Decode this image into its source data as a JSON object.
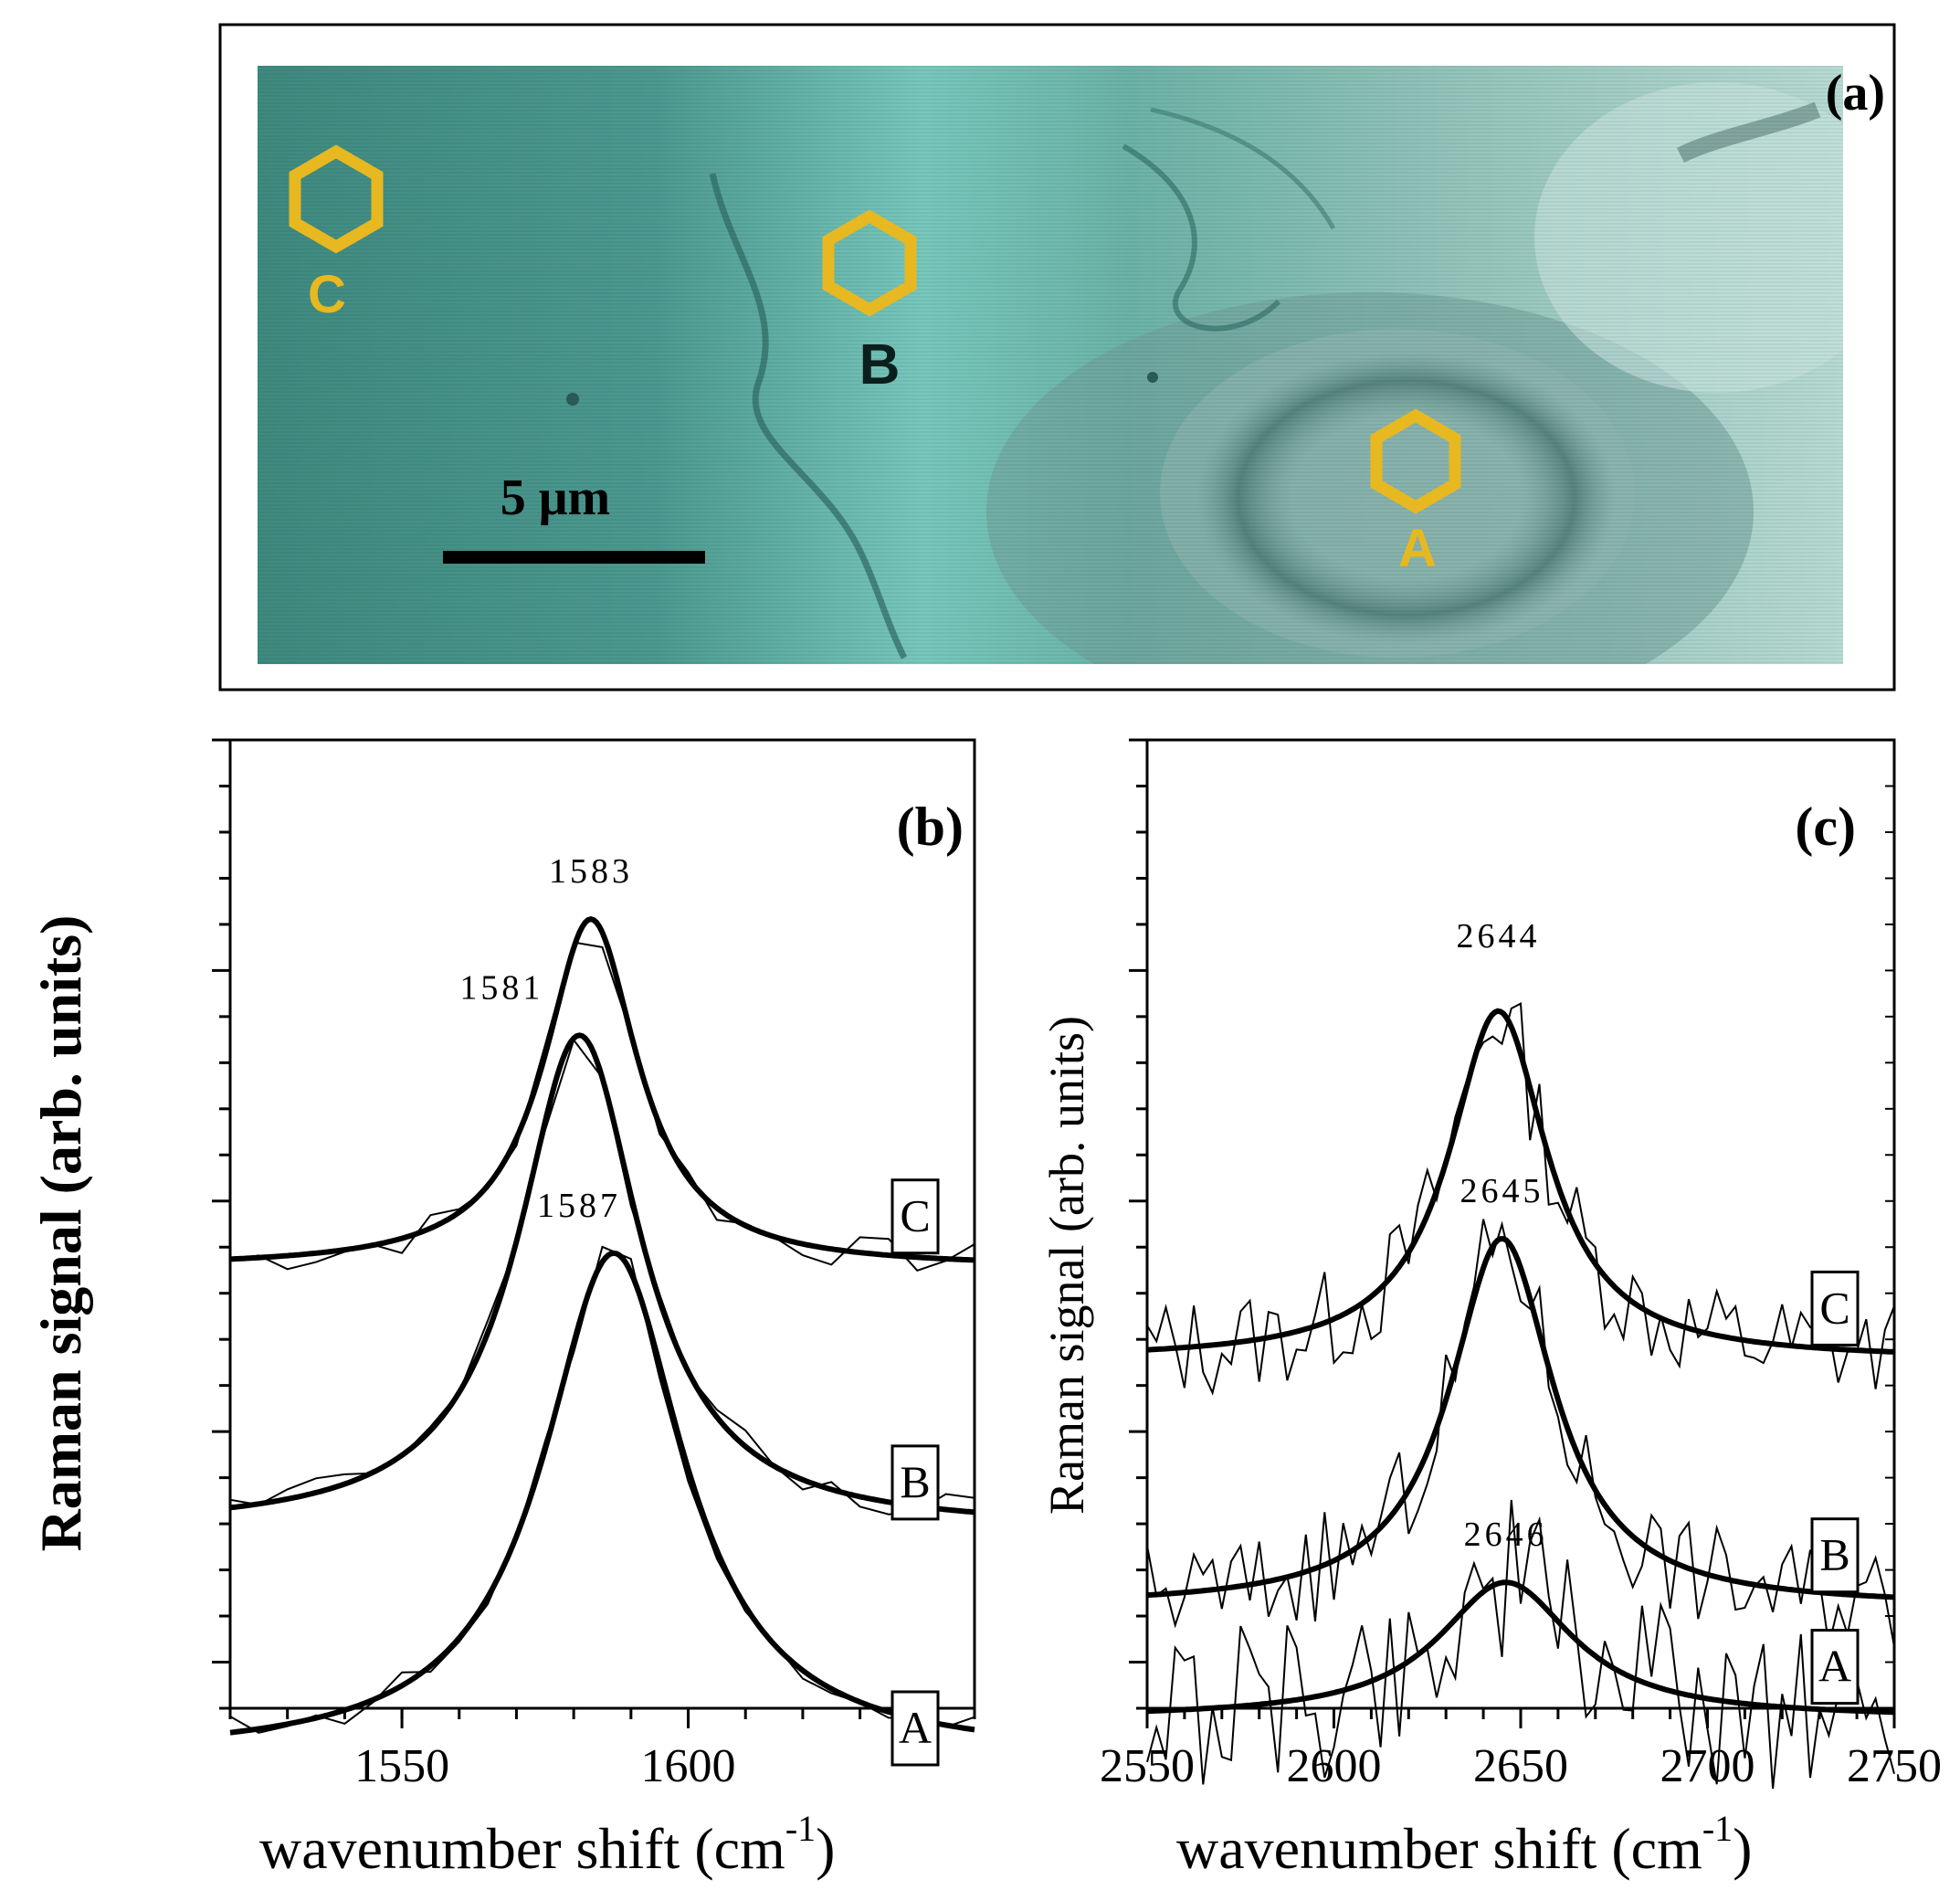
{
  "panel_a": {
    "tag": "(a)",
    "scale_bar_label": "5 μm",
    "markers": [
      {
        "label": "C",
        "icon": "hexagon-icon"
      },
      {
        "label": "B",
        "icon": "hexagon-icon"
      },
      {
        "label": "A",
        "icon": "hexagon-icon"
      }
    ],
    "marker_color": "#e8b820"
  },
  "chart_data": [
    {
      "type": "line",
      "panel": "(b)",
      "xlabel": "wavenumber shift (cm",
      "xlabel_sup": "-1",
      "xlabel_close": ")",
      "ylabel": "Raman signal (arb. units)",
      "xlim": [
        1520,
        1650
      ],
      "ylim": [
        0,
        1
      ],
      "xticks": [
        1550,
        1600
      ],
      "series": [
        {
          "name": "C",
          "peak_label": "1583",
          "peak_x": 1583,
          "baseline": 0.455,
          "amplitude": 0.36,
          "width": 10
        },
        {
          "name": "B",
          "peak_label": "1581",
          "peak_x": 1581,
          "baseline": 0.185,
          "amplitude": 0.51,
          "width": 13
        },
        {
          "name": "A",
          "peak_label": "1587",
          "peak_x": 1587,
          "baseline": -0.05,
          "amplitude": 0.52,
          "width": 15
        }
      ]
    },
    {
      "type": "line",
      "panel": "(c)",
      "xlabel": "wavenumber shift (cm",
      "xlabel_sup": "-1",
      "xlabel_close": ")",
      "ylabel": "Raman signal (arb. units)",
      "xlim": [
        2550,
        2750
      ],
      "ylim": [
        0,
        1
      ],
      "xticks": [
        2550,
        2600,
        2650,
        2700,
        2750
      ],
      "series": [
        {
          "name": "C",
          "peak_label": "2644",
          "peak_x": 2644,
          "baseline": 0.36,
          "amplitude": 0.36,
          "width": 16
        },
        {
          "name": "B",
          "peak_label": "2645",
          "peak_x": 2645,
          "baseline": 0.105,
          "amplitude": 0.38,
          "width": 17
        },
        {
          "name": "A",
          "peak_label": "2646",
          "peak_x": 2646,
          "baseline": -0.01,
          "amplitude": 0.14,
          "width": 22
        }
      ]
    }
  ]
}
